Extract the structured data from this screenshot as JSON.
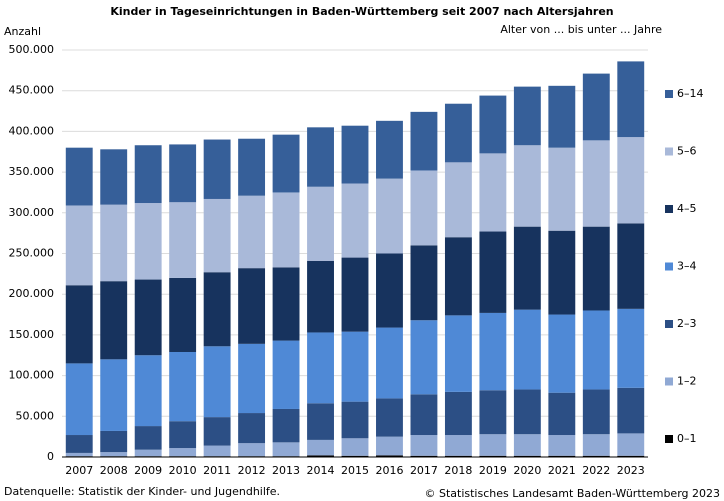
{
  "chart_data": {
    "type": "stacked-bar",
    "title": "Kinder in Tageseinrichtungen in Baden-Württemberg seit 2007 nach Altersjahren",
    "y_axis_label": "Anzahl",
    "legend_title": "Alter von ... bis unter ... Jahre",
    "source": "Datenquelle: Statistik der Kinder- und Jugendhilfe.",
    "copyright": "© Statistisches Landesamt Baden-Württemberg 2023",
    "categories": [
      "2007",
      "2008",
      "2009",
      "2010",
      "2011",
      "2012",
      "2013",
      "2014",
      "2015",
      "2016",
      "2017",
      "2018",
      "2019",
      "2020",
      "2021",
      "2022",
      "2023"
    ],
    "ylim": [
      0,
      500000
    ],
    "yticks": [
      0,
      {
        "value": 50000,
        "label": "50.000"
      },
      {
        "value": 100000,
        "label": "100.000"
      },
      {
        "value": 150000,
        "label": "150.000"
      },
      {
        "value": 200000,
        "label": "200.000"
      },
      {
        "value": 250000,
        "label": "250.000"
      },
      {
        "value": 300000,
        "label": "300.000"
      },
      {
        "value": 350000,
        "label": "350.000"
      },
      {
        "value": 400000,
        "label": "400.000"
      },
      {
        "value": 450000,
        "label": "450.000"
      },
      {
        "value": 500000,
        "label": "500.000"
      }
    ],
    "grid": true,
    "legend_position": "right",
    "series": [
      {
        "name": "0–1",
        "color": "#000000",
        "values": [
          1000,
          1000,
          1000,
          1000,
          1000,
          1000,
          1000,
          2000,
          1500,
          2000,
          1500,
          1500,
          1500,
          1500,
          1500,
          1500,
          1500
        ]
      },
      {
        "name": "1–2",
        "color": "#90a9d4",
        "values": [
          4000,
          5000,
          8000,
          10000,
          13000,
          16000,
          17000,
          19000,
          21500,
          23000,
          25500,
          25500,
          26500,
          26500,
          25500,
          26500,
          27500
        ]
      },
      {
        "name": "2–3",
        "color": "#2c4f85",
        "values": [
          22000,
          26000,
          29000,
          33000,
          35000,
          37000,
          41000,
          45000,
          45000,
          47000,
          50000,
          53000,
          54000,
          55000,
          52000,
          55000,
          56000
        ]
      },
      {
        "name": "3–4",
        "color": "#4f89d6",
        "values": [
          88000,
          88000,
          87000,
          85000,
          87000,
          85000,
          84000,
          87000,
          86000,
          87000,
          91000,
          94000,
          95000,
          98000,
          96000,
          97000,
          97000
        ]
      },
      {
        "name": "4–5",
        "color": "#17335e",
        "values": [
          96000,
          96000,
          93000,
          91000,
          91000,
          93000,
          90000,
          88000,
          91000,
          91000,
          92000,
          96000,
          100000,
          102000,
          103000,
          103000,
          105000
        ]
      },
      {
        "name": "5–6",
        "color": "#a9b9d9",
        "values": [
          98000,
          94000,
          94000,
          93000,
          90000,
          89000,
          92000,
          91000,
          91000,
          92000,
          92000,
          92000,
          96000,
          100000,
          102000,
          106000,
          106000
        ]
      },
      {
        "name": "6–14",
        "color": "#365f99",
        "values": [
          71000,
          68000,
          71000,
          71000,
          73000,
          70000,
          71000,
          73000,
          71000,
          71000,
          72000,
          72000,
          71000,
          72000,
          76000,
          82000,
          93000
        ]
      }
    ]
  }
}
